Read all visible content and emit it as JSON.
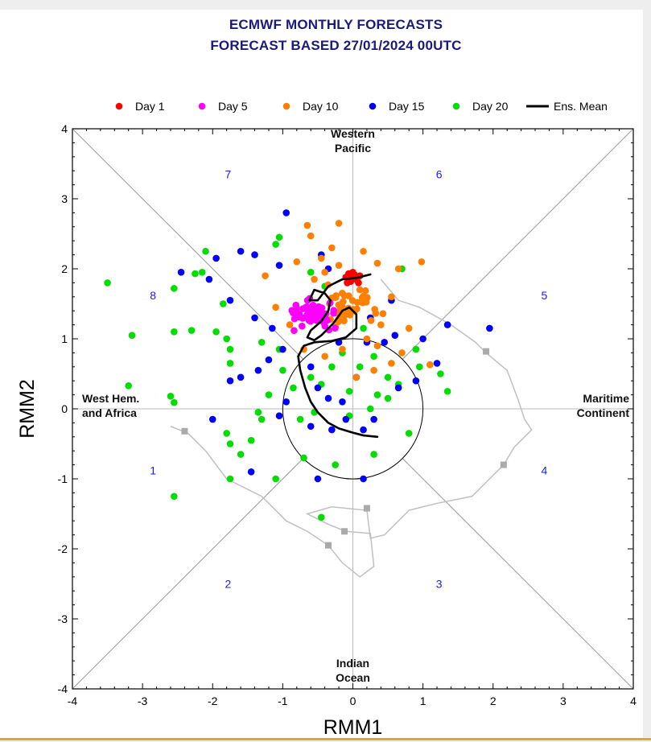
{
  "title_line1": "ECMWF MONTHLY FORECASTS",
  "title_line2": "FORECAST  BASED 27/01/2024 00UTC",
  "chart_data": {
    "type": "scatter",
    "title": "ECMWF MONTHLY FORECASTS FORECAST BASED 27/01/2024 00UTC",
    "xlabel": "RMM1",
    "ylabel": "RMM2",
    "xlim": [
      -4,
      4
    ],
    "ylim": [
      -4,
      4
    ],
    "xticks": [
      "-4",
      "-3",
      "-2",
      "-1",
      "0",
      "1",
      "2",
      "3",
      "4"
    ],
    "yticks": [
      "-4",
      "-3",
      "-2",
      "-1",
      "0",
      "1",
      "2",
      "3",
      "4"
    ],
    "legend_position": "top",
    "legend": [
      "Day 1",
      "Day 5",
      "Day 10",
      "Day 15",
      "Day 20",
      "Ens. Mean"
    ],
    "regions": [
      {
        "name": "Western\nPacific",
        "x": 0,
        "y": 3.78
      },
      {
        "name": "Indian\nOcean",
        "x": 0,
        "y": -3.78
      },
      {
        "name": "West Hem.\nand Africa",
        "x": -3.9,
        "y": 0
      },
      {
        "name": "Maritime\nContinent",
        "x": 3.95,
        "y": 0
      }
    ],
    "phases": [
      {
        "label": "1",
        "x": -2.85,
        "y": -0.88
      },
      {
        "label": "2",
        "x": -1.78,
        "y": -2.5
      },
      {
        "label": "3",
        "x": 1.23,
        "y": -2.5
      },
      {
        "label": "4",
        "x": 2.73,
        "y": -0.88
      },
      {
        "label": "5",
        "x": 2.73,
        "y": 1.62
      },
      {
        "label": "6",
        "x": 1.23,
        "y": 3.35
      },
      {
        "label": "7",
        "x": -1.78,
        "y": 3.35
      },
      {
        "label": "8",
        "x": -2.85,
        "y": 1.62
      }
    ],
    "series": [
      {
        "name": "Day 1",
        "color": "#ff0000",
        "points": [
          [
            0,
            1.87
          ],
          [
            -0.05,
            1.9
          ],
          [
            0.05,
            1.85
          ],
          [
            -0.1,
            1.88
          ],
          [
            0.1,
            1.9
          ],
          [
            0.0,
            1.95
          ],
          [
            -0.03,
            1.82
          ],
          [
            0.08,
            1.8
          ],
          [
            -0.08,
            1.8
          ],
          [
            0.02,
            1.92
          ],
          [
            0.06,
            1.86
          ],
          [
            -0.06,
            1.93
          ]
        ]
      },
      {
        "name": "Day 5",
        "color": "#ff00ff",
        "center": [
          -0.6,
          1.35
        ],
        "spread": [
          0.3,
          0.18
        ],
        "count": 65,
        "seed": 5
      },
      {
        "name": "Day 10",
        "color": "#ff7f00",
        "points": [
          [
            -0.2,
            2.65
          ],
          [
            -0.65,
            2.62
          ],
          [
            -0.6,
            2.47
          ],
          [
            -0.3,
            2.3
          ],
          [
            0.15,
            2.25
          ],
          [
            -0.8,
            2.1
          ],
          [
            -0.45,
            2.15
          ],
          [
            -0.2,
            2.05
          ],
          [
            0.35,
            2.08
          ],
          [
            0.65,
            2.0
          ],
          [
            0.98,
            2.1
          ],
          [
            -1.25,
            1.9
          ],
          [
            -0.4,
            1.95
          ],
          [
            0.55,
            1.6
          ],
          [
            0.8,
            1.15
          ],
          [
            0.7,
            0.8
          ],
          [
            0.55,
            0.65
          ],
          [
            0.3,
            0.55
          ],
          [
            0.05,
            0.45
          ],
          [
            -0.4,
            0.75
          ],
          [
            -0.7,
            0.85
          ],
          [
            -0.9,
            1.2
          ],
          [
            -1.1,
            1.45
          ],
          [
            1.1,
            0.63
          ],
          [
            0.4,
            1.2
          ],
          [
            0.2,
            1.0
          ],
          [
            0.35,
            0.9
          ],
          [
            -0.15,
            0.85
          ],
          [
            0.1,
            1.7
          ],
          [
            -0.55,
            1.85
          ]
        ],
        "center": [
          -0.05,
          1.45
        ],
        "spread": [
          0.45,
          0.28
        ],
        "count": 45,
        "seed": 10
      },
      {
        "name": "Day 15",
        "color": "#0000ff",
        "points": [
          [
            -0.95,
            2.8
          ],
          [
            -1.95,
            2.15
          ],
          [
            -2.45,
            1.95
          ],
          [
            -2.05,
            1.85
          ],
          [
            -1.6,
            2.25
          ],
          [
            -1.4,
            2.2
          ],
          [
            -1.05,
            2.05
          ],
          [
            -0.45,
            2.2
          ],
          [
            -0.35,
            2.0
          ],
          [
            1.35,
            1.2
          ],
          [
            1.95,
            1.15
          ],
          [
            1.0,
            1.0
          ],
          [
            1.2,
            0.65
          ],
          [
            0.9,
            0.4
          ],
          [
            0.65,
            0.3
          ],
          [
            -1.2,
            0.7
          ],
          [
            -1.35,
            0.55
          ],
          [
            -1.6,
            0.45
          ],
          [
            -1.75,
            0.4
          ],
          [
            -2.0,
            -0.15
          ],
          [
            -1.45,
            -0.9
          ],
          [
            -1.05,
            -0.1
          ],
          [
            -0.95,
            0.1
          ],
          [
            -0.6,
            -0.25
          ],
          [
            -0.3,
            -0.3
          ],
          [
            -0.1,
            -0.15
          ],
          [
            0.15,
            -0.3
          ],
          [
            0.3,
            -0.15
          ],
          [
            0.15,
            -1.0
          ],
          [
            -0.5,
            -1.0
          ],
          [
            -0.5,
            0.3
          ],
          [
            -0.35,
            0.15
          ],
          [
            -0.15,
            0.1
          ],
          [
            0.05,
            0.45
          ],
          [
            -0.6,
            0.6
          ],
          [
            -1.0,
            0.85
          ],
          [
            -1.15,
            1.15
          ],
          [
            -1.4,
            1.3
          ],
          [
            -1.75,
            1.55
          ],
          [
            0.55,
            1.55
          ],
          [
            0.25,
            1.3
          ],
          [
            0.6,
            1.05
          ],
          [
            -0.2,
            0.95
          ],
          [
            0.2,
            0.95
          ],
          [
            0.45,
            0.95
          ]
        ]
      },
      {
        "name": "Day 20",
        "color": "#00dd00",
        "points": [
          [
            -3.5,
            1.8
          ],
          [
            -3.15,
            1.05
          ],
          [
            -2.55,
            1.1
          ],
          [
            -2.3,
            1.12
          ],
          [
            -2.55,
            1.72
          ],
          [
            -2.25,
            1.93
          ],
          [
            -2.1,
            2.25
          ],
          [
            -2.15,
            1.95
          ],
          [
            -1.85,
            1.5
          ],
          [
            -1.95,
            1.1
          ],
          [
            -1.8,
            1.0
          ],
          [
            -1.75,
            0.85
          ],
          [
            -1.75,
            0.65
          ],
          [
            -1.8,
            -0.35
          ],
          [
            -1.75,
            -0.5
          ],
          [
            -1.6,
            -0.65
          ],
          [
            -1.45,
            -0.45
          ],
          [
            -1.35,
            -0.05
          ],
          [
            -1.3,
            -0.15
          ],
          [
            -1.05,
            0.85
          ],
          [
            -1.05,
            2.45
          ],
          [
            -1.1,
            2.35
          ],
          [
            -0.6,
            1.95
          ],
          [
            -0.4,
            1.75
          ],
          [
            -3.2,
            0.33
          ],
          [
            -2.6,
            0.18
          ],
          [
            -2.55,
            0.09
          ],
          [
            -2.55,
            -1.25
          ],
          [
            -1.75,
            -1.0
          ],
          [
            -1.1,
            -1.0
          ],
          [
            -0.75,
            -0.15
          ],
          [
            -0.55,
            -0.05
          ],
          [
            -0.45,
            0.35
          ],
          [
            -0.3,
            0.6
          ],
          [
            -0.15,
            0.8
          ],
          [
            0.1,
            0.6
          ],
          [
            0.3,
            0.75
          ],
          [
            0.5,
            0.45
          ],
          [
            0.65,
            0.35
          ],
          [
            0.9,
            0.85
          ],
          [
            1.25,
            0.5
          ],
          [
            1.35,
            0.25
          ],
          [
            0.7,
            2.0
          ],
          [
            0.8,
            -0.35
          ],
          [
            0.3,
            -0.65
          ],
          [
            -0.25,
            -0.8
          ],
          [
            -0.45,
            -1.55
          ],
          [
            -0.7,
            -0.7
          ],
          [
            -0.05,
            -0.1
          ],
          [
            0.5,
            0.15
          ],
          [
            -0.85,
            0.3
          ],
          [
            -1.0,
            0.55
          ],
          [
            -1.3,
            0.95
          ],
          [
            0.15,
            1.15
          ],
          [
            0.95,
            0.6
          ],
          [
            0.35,
            0.2
          ],
          [
            -0.6,
            0.45
          ],
          [
            -1.2,
            0.2
          ],
          [
            0.25,
            0.0
          ],
          [
            -0.05,
            0.25
          ]
        ]
      },
      {
        "name": "Ens. Mean",
        "color": "#000000",
        "line": [
          [
            0.35,
            -0.4
          ],
          [
            0.15,
            -0.38
          ],
          [
            0.0,
            -0.34
          ],
          [
            -0.2,
            -0.28
          ],
          [
            -0.35,
            -0.2
          ],
          [
            -0.5,
            -0.05
          ],
          [
            -0.6,
            0.1
          ],
          [
            -0.68,
            0.3
          ],
          [
            -0.75,
            0.55
          ],
          [
            -0.78,
            0.75
          ],
          [
            -0.7,
            0.9
          ],
          [
            -0.55,
            0.95
          ],
          [
            -0.3,
            0.97
          ],
          [
            -0.1,
            1.02
          ],
          [
            0.05,
            1.15
          ],
          [
            0.05,
            1.35
          ],
          [
            -0.05,
            1.45
          ],
          [
            -0.15,
            1.4
          ],
          [
            -0.28,
            1.22
          ],
          [
            -0.45,
            1.05
          ],
          [
            -0.55,
            0.98
          ],
          [
            -0.65,
            1.02
          ],
          [
            -0.6,
            1.12
          ],
          [
            -0.45,
            1.25
          ],
          [
            -0.35,
            1.4
          ],
          [
            -0.32,
            1.55
          ],
          [
            -0.4,
            1.65
          ],
          [
            -0.55,
            1.7
          ],
          [
            -0.62,
            1.55
          ],
          [
            -0.5,
            1.55
          ],
          [
            -0.35,
            1.75
          ],
          [
            -0.15,
            1.85
          ],
          [
            0.05,
            1.87
          ],
          [
            0.25,
            1.92
          ]
        ]
      }
    ],
    "climatology_track": {
      "color": "#c0c0c0",
      "points": [
        [
          0.4,
          1.85
        ],
        [
          0.65,
          1.55
        ],
        [
          0.95,
          1.45
        ],
        [
          1.4,
          1.2
        ],
        [
          1.75,
          0.95
        ],
        [
          1.9,
          0.8
        ],
        [
          2.2,
          0.55
        ],
        [
          2.35,
          0.15
        ],
        [
          2.45,
          -0.15
        ],
        [
          2.55,
          -0.3
        ],
        [
          2.3,
          -0.55
        ],
        [
          2.15,
          -0.8
        ],
        [
          1.9,
          -1.05
        ],
        [
          1.7,
          -1.25
        ],
        [
          1.2,
          -1.35
        ],
        [
          0.8,
          -1.45
        ],
        [
          0.45,
          -1.8
        ],
        [
          0.25,
          -1.85
        ],
        [
          0.2,
          -1.45
        ],
        [
          -0.3,
          -1.4
        ],
        [
          -0.65,
          -1.5
        ],
        [
          -0.35,
          -1.65
        ],
        [
          -0.1,
          -1.75
        ],
        [
          0.25,
          -1.78
        ],
        [
          0.3,
          -2.25
        ],
        [
          0.1,
          -2.4
        ],
        [
          -0.15,
          -2.2
        ],
        [
          -0.35,
          -1.95
        ],
        [
          -0.65,
          -1.75
        ],
        [
          -0.95,
          -1.6
        ],
        [
          -1.3,
          -1.25
        ],
        [
          -1.8,
          -1.0
        ],
        [
          -2.1,
          -0.6
        ],
        [
          -2.35,
          -0.35
        ],
        [
          -2.6,
          -0.25
        ]
      ],
      "markers": [
        [
          1.9,
          0.82
        ],
        [
          2.15,
          -0.8
        ],
        [
          0.2,
          -1.42
        ],
        [
          -0.12,
          -1.75
        ],
        [
          -0.35,
          -1.95
        ],
        [
          -2.4,
          -0.32
        ]
      ]
    }
  }
}
